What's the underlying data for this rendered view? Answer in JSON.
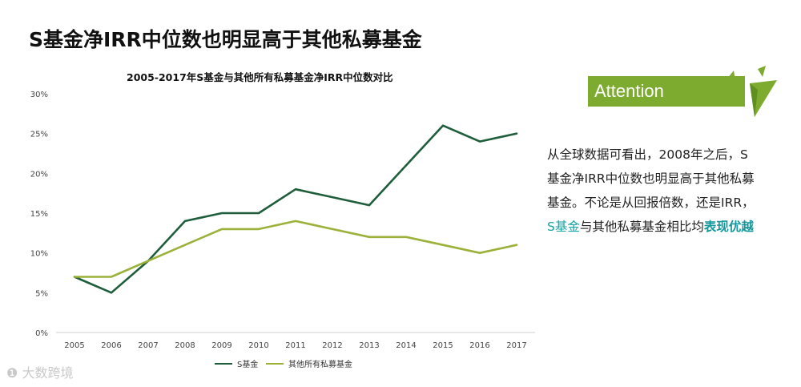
{
  "page": {
    "main_title": "S基金净IRR中位数也明显高于其他私募基金",
    "watermark": "大数跨境"
  },
  "attention": {
    "label": "Attention",
    "lines": [
      "从全球数据可看出，2008年之后，S",
      "基金净IRR中位数也明显高于其他私募",
      "基金。不论是从回报倍数，还是IRR，"
    ],
    "last_line": {
      "part1": "S基金",
      "part2": "与其他私募基金相比均",
      "part3": "表现优越"
    }
  },
  "colors": {
    "s_fund": "#1e5e3a",
    "others": "#9bb13a",
    "accent": "#7dab2f",
    "highlight": "#14979b"
  },
  "chart_data": {
    "type": "line",
    "title": "2005-2017年S基金与其他所有私募基金净IRR中位数对比",
    "x": [
      "2005",
      "2006",
      "2007",
      "2008",
      "2009",
      "2010",
      "2011",
      "2012",
      "2013",
      "2014",
      "2015",
      "2016",
      "2017"
    ],
    "series": [
      {
        "name": "S基金",
        "values": [
          7,
          5,
          9,
          14,
          15,
          15,
          18,
          17,
          16,
          21,
          26,
          24,
          25
        ]
      },
      {
        "name": "其他所有私募基金",
        "values": [
          7,
          7,
          9,
          11,
          13,
          13,
          14,
          13,
          12,
          12,
          11,
          10,
          11
        ]
      }
    ],
    "ylim": [
      0,
      30
    ],
    "yticks": [
      "0%",
      "5%",
      "10%",
      "15%",
      "20%",
      "25%",
      "30%"
    ],
    "ytick_values": [
      0,
      5,
      10,
      15,
      20,
      25,
      30
    ],
    "grid": false,
    "legend": "bottom"
  }
}
